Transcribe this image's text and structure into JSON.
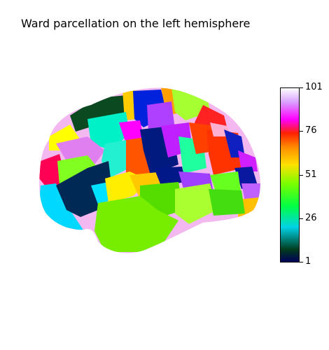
{
  "title": "Ward parcellation on the left hemisphere",
  "colorbar": {
    "ticks": [
      "101",
      "76",
      "51",
      "26",
      "1"
    ],
    "min": 1,
    "max": 101,
    "colormap": "gist_ncar"
  },
  "view": "lateral left hemisphere surface"
}
